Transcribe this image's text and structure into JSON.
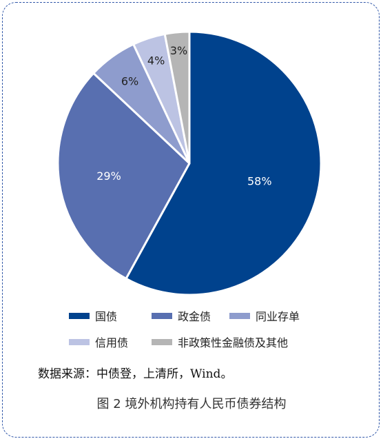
{
  "chart_data": {
    "type": "pie",
    "slices": [
      {
        "label": "国债",
        "value": 58,
        "display": "58%",
        "color": "#00428d"
      },
      {
        "label": "政金债",
        "value": 29,
        "display": "29%",
        "color": "#586fb0"
      },
      {
        "label": "同业存单",
        "value": 6,
        "display": "6%",
        "color": "#8e9ccd"
      },
      {
        "label": "信用债",
        "value": 4,
        "display": "4%",
        "color": "#bcc3e3"
      },
      {
        "label": "非政策性金融债及其他",
        "value": 3,
        "display": "3%",
        "color": "#b5b5b5"
      }
    ],
    "legend_position": "bottom"
  },
  "source_text": "数据来源：中债登，上清所，Wind。",
  "caption": "图 2  境外机构持有人民币债券结构"
}
